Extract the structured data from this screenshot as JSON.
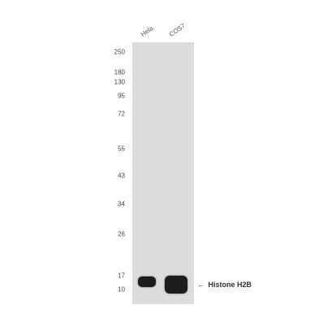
{
  "lanes": [
    "Hela",
    "COS7"
  ],
  "markers": [
    "250",
    "180",
    "130",
    "95",
    "72",
    "55",
    "43",
    "34",
    "26",
    "17",
    "10"
  ],
  "target": {
    "arrow": "←",
    "label": "Histone H2B"
  },
  "colors": {
    "membrane": "#dcdcdc",
    "band": "#1c1c1c"
  }
}
